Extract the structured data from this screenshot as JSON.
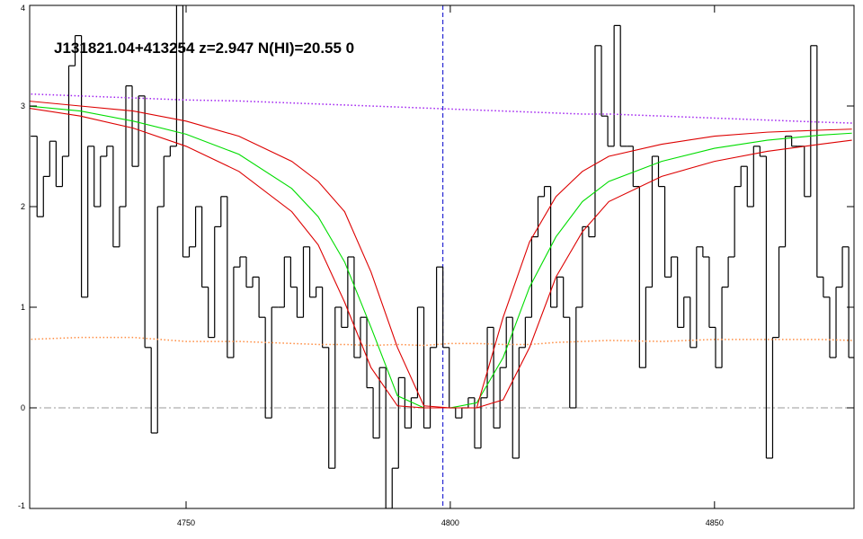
{
  "chart_data": {
    "type": "line",
    "title": "J131821.04+413254 z=2.947 N(HI)=20.55 0",
    "xlim": [
      4720.4,
      4876.4
    ],
    "ylim": [
      -1,
      4
    ],
    "xticks": [
      4750,
      4800,
      4850
    ],
    "yticks": [
      -1,
      0,
      1,
      2,
      3,
      4
    ],
    "vlines": [
      4798.6
    ],
    "hlines": [
      0
    ],
    "series": [
      {
        "style": "step",
        "color": "#000000",
        "x": [
          4721.2,
          4722.4,
          4723.6,
          4724.8,
          4726,
          4727.2,
          4728.4,
          4729.6,
          4730.8,
          4732,
          4733.2,
          4734.4,
          4735.6,
          4736.8,
          4738,
          4739.2,
          4740.4,
          4741.6,
          4742.8,
          4744,
          4745.2,
          4746.4,
          4747.6,
          4748.8,
          4750,
          4751.2,
          4752.4,
          4753.6,
          4754.8,
          4756,
          4757.2,
          4758.4,
          4759.6,
          4760.8,
          4762,
          4763.2,
          4764.4,
          4765.6,
          4766.8,
          4768,
          4769.2,
          4770.4,
          4771.6,
          4772.8,
          4774,
          4775.2,
          4776.4,
          4777.6,
          4778.8,
          4780,
          4781.2,
          4782.4,
          4783.6,
          4784.8,
          4786,
          4787.2,
          4788.4,
          4789.6,
          4790.8,
          4792,
          4793.2,
          4794.4,
          4795.6,
          4796.8,
          4798,
          4799.2,
          4800.4,
          4801.6,
          4802.8,
          4804,
          4805.2,
          4806.4,
          4807.6,
          4808.8,
          4810,
          4811.2,
          4812.4,
          4813.6,
          4814.8,
          4816,
          4817.2,
          4818.4,
          4819.6,
          4820.8,
          4822,
          4823.2,
          4824.4,
          4825.6,
          4826.8,
          4828,
          4829.2,
          4830.4,
          4831.6,
          4832.8,
          4834,
          4835.2,
          4836.4,
          4837.6,
          4838.8,
          4840,
          4841.2,
          4842.4,
          4843.6,
          4844.8,
          4846,
          4847.2,
          4848.4,
          4849.6,
          4850.8,
          4852,
          4853.2,
          4854.4,
          4855.6,
          4856.8,
          4858,
          4859.2,
          4860.4,
          4861.6,
          4862.8,
          4864,
          4865.2,
          4866.4,
          4867.6,
          4868.8,
          4870,
          4871.2,
          4872.4,
          4873.6,
          4874.8,
          4876
        ],
        "values": [
          2.7,
          1.9,
          2.3,
          2.65,
          2.2,
          2.5,
          3.4,
          3.7,
          1.1,
          2.6,
          2.0,
          2.5,
          2.6,
          1.6,
          2.0,
          3.2,
          2.4,
          3.1,
          0.6,
          -0.25,
          2.0,
          2.5,
          2.6,
          4.0,
          1.5,
          1.6,
          2.0,
          1.2,
          0.7,
          1.8,
          2.1,
          0.5,
          1.4,
          1.5,
          1.2,
          1.3,
          0.9,
          -0.1,
          1.0,
          1.0,
          1.5,
          1.2,
          0.9,
          1.6,
          1.1,
          1.2,
          0.6,
          -0.6,
          1.0,
          0.8,
          1.5,
          0.5,
          0.9,
          0.2,
          -0.3,
          0.4,
          -1.0,
          -0.6,
          0.3,
          -0.2,
          0.1,
          1.0,
          -0.2,
          0.6,
          1.4,
          0.6,
          0.0,
          -0.1,
          0.0,
          0.1,
          -0.4,
          0.1,
          0.8,
          -0.2,
          0.4,
          0.9,
          -0.5,
          0.6,
          0.9,
          1.7,
          2.1,
          2.2,
          1.0,
          1.3,
          0.9,
          0.0,
          1.0,
          1.8,
          1.7,
          3.6,
          2.9,
          2.6,
          3.8,
          2.6,
          2.6,
          2.2,
          0.4,
          1.2,
          2.5,
          2.2,
          1.3,
          1.5,
          0.8,
          1.1,
          0.6,
          1.6,
          1.5,
          0.8,
          0.4,
          1.2,
          1.5,
          2.2,
          2.4,
          2.0,
          2.6,
          2.5,
          -0.5,
          0.7,
          1.6,
          2.7,
          2.6,
          2.6,
          2.1,
          3.6,
          1.3,
          1.1,
          0.5,
          1.2,
          1.6,
          0.5
        ]
      },
      {
        "style": "dotted",
        "color": "#a020f0",
        "x": [
          4720,
          4730,
          4740,
          4750,
          4760,
          4770,
          4775,
          4780,
          4785,
          4790,
          4795,
          4800,
          4805,
          4810,
          4815,
          4820,
          4825,
          4830,
          4840,
          4850,
          4860,
          4870,
          4876
        ],
        "values": [
          3.12,
          3.1,
          3.08,
          3.06,
          3.05,
          3.03,
          3.02,
          3.01,
          3.0,
          2.99,
          2.98,
          2.97,
          2.96,
          2.95,
          2.94,
          2.93,
          2.92,
          2.92,
          2.9,
          2.88,
          2.86,
          2.84,
          2.83
        ]
      },
      {
        "style": "dotted",
        "color": "#ff8c40",
        "x": [
          4720,
          4730,
          4740,
          4750,
          4760,
          4770,
          4775,
          4780,
          4785,
          4790,
          4795,
          4800,
          4805,
          4810,
          4815,
          4820,
          4825,
          4830,
          4840,
          4850,
          4860,
          4870,
          4876
        ],
        "values": [
          0.68,
          0.7,
          0.7,
          0.66,
          0.66,
          0.64,
          0.63,
          0.63,
          0.62,
          0.63,
          0.62,
          0.64,
          0.64,
          0.63,
          0.63,
          0.65,
          0.66,
          0.67,
          0.66,
          0.68,
          0.68,
          0.68,
          0.67
        ]
      },
      {
        "style": "solid",
        "color": "#00dd00",
        "x": [
          4720,
          4730,
          4740,
          4750,
          4760,
          4770,
          4775,
          4780,
          4785,
          4790,
          4795,
          4800,
          4805,
          4810,
          4815,
          4820,
          4825,
          4830,
          4840,
          4850,
          4860,
          4870,
          4876
        ],
        "values": [
          3.0,
          2.95,
          2.85,
          2.72,
          2.52,
          2.18,
          1.9,
          1.45,
          0.8,
          0.12,
          0.0,
          0.0,
          0.05,
          0.5,
          1.2,
          1.7,
          2.05,
          2.25,
          2.45,
          2.58,
          2.66,
          2.71,
          2.73
        ]
      },
      {
        "style": "solid",
        "color": "#dd0000",
        "x": [
          4720,
          4730,
          4740,
          4750,
          4760,
          4770,
          4775,
          4780,
          4785,
          4790,
          4795,
          4800,
          4805,
          4810,
          4815,
          4820,
          4825,
          4830,
          4840,
          4850,
          4860,
          4870,
          4876
        ],
        "values": [
          3.05,
          3.0,
          2.95,
          2.85,
          2.7,
          2.45,
          2.25,
          1.95,
          1.35,
          0.6,
          0.02,
          0.0,
          0.0,
          0.9,
          1.65,
          2.1,
          2.35,
          2.5,
          2.62,
          2.7,
          2.74,
          2.76,
          2.77
        ]
      },
      {
        "style": "solid",
        "color": "#dd0000",
        "x": [
          4720,
          4730,
          4740,
          4750,
          4760,
          4770,
          4775,
          4780,
          4785,
          4790,
          4795,
          4800,
          4805,
          4810,
          4815,
          4820,
          4825,
          4830,
          4840,
          4850,
          4860,
          4870,
          4876
        ],
        "values": [
          2.98,
          2.9,
          2.78,
          2.6,
          2.35,
          1.95,
          1.62,
          1.05,
          0.4,
          0.02,
          0.0,
          0.0,
          0.0,
          0.08,
          0.6,
          1.3,
          1.75,
          2.05,
          2.3,
          2.45,
          2.55,
          2.62,
          2.66
        ]
      }
    ]
  }
}
